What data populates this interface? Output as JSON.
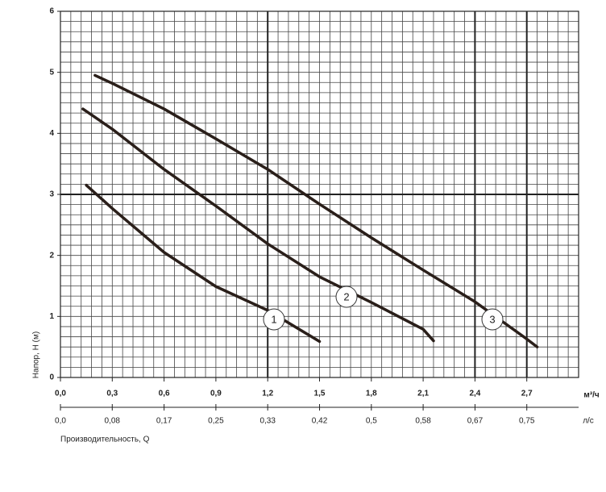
{
  "chart_data": {
    "type": "line",
    "xlabel": "Производительность, Q",
    "ylabel": "Напор, H (м)",
    "x_unit": "м³/ч",
    "x2_unit": "л/с",
    "xlim": [
      0,
      3
    ],
    "ylim": [
      0,
      6
    ],
    "x2lim": [
      0,
      0.8333
    ],
    "xticks": [
      {
        "value": 0,
        "label": "0,0"
      },
      {
        "value": 0.3,
        "label": "0,3"
      },
      {
        "value": 0.6,
        "label": "0,6"
      },
      {
        "value": 0.9,
        "label": "0,9"
      },
      {
        "value": 1.2,
        "label": "1,2"
      },
      {
        "value": 1.5,
        "label": "1,5"
      },
      {
        "value": 1.8,
        "label": "1,8"
      },
      {
        "value": 2.1,
        "label": "2,1"
      },
      {
        "value": 2.4,
        "label": "2,4"
      },
      {
        "value": 2.7,
        "label": "2,7"
      }
    ],
    "x2ticks": [
      {
        "value": 0,
        "label": "0,0"
      },
      {
        "value": 0.0833,
        "label": "0,08"
      },
      {
        "value": 0.1667,
        "label": "0,17"
      },
      {
        "value": 0.25,
        "label": "0,25"
      },
      {
        "value": 0.3333,
        "label": "0,33"
      },
      {
        "value": 0.4167,
        "label": "0,42"
      },
      {
        "value": 0.5,
        "label": "0,5"
      },
      {
        "value": 0.5833,
        "label": "0,58"
      },
      {
        "value": 0.6667,
        "label": "0,67"
      },
      {
        "value": 0.75,
        "label": "0,75"
      }
    ],
    "yticks": [
      0,
      1,
      2,
      3,
      4,
      5,
      6
    ],
    "grid": true,
    "x_reference_lines": [
      1.2,
      2.4,
      2.7
    ],
    "y_reference_lines": [
      3
    ],
    "series": [
      {
        "name": "1",
        "color": "#2a1f1a",
        "x": [
          0.15,
          0.3,
          0.6,
          0.9,
          1.2,
          1.5
        ],
        "values": [
          3.15,
          2.77,
          2.05,
          1.49,
          1.1,
          0.59
        ]
      },
      {
        "name": "2",
        "color": "#2a1f1a",
        "x": [
          0.13,
          0.3,
          0.6,
          0.9,
          1.2,
          1.5,
          1.8,
          2.1,
          2.16
        ],
        "values": [
          4.4,
          4.07,
          3.41,
          2.81,
          2.19,
          1.65,
          1.23,
          0.79,
          0.6
        ]
      },
      {
        "name": "3",
        "color": "#2a1f1a",
        "x": [
          0.2,
          0.3,
          0.6,
          0.9,
          1.2,
          1.5,
          1.8,
          2.1,
          2.4,
          2.7,
          2.76
        ],
        "values": [
          4.95,
          4.82,
          4.4,
          3.91,
          3.41,
          2.84,
          2.29,
          1.76,
          1.24,
          0.63,
          0.5
        ]
      }
    ]
  }
}
